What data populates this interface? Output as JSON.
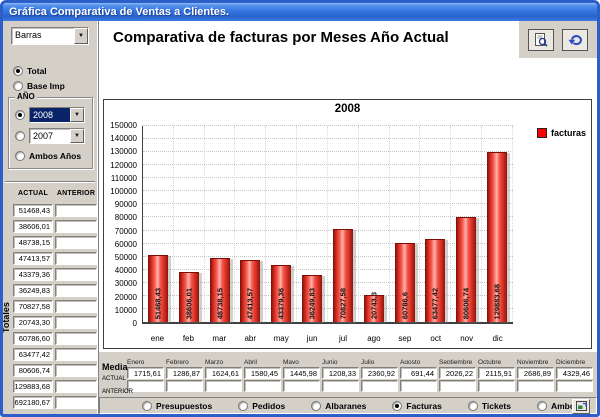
{
  "window": {
    "title": "Gráfica Comparativa de Ventas a Clientes."
  },
  "icons": {
    "combo_arrow": "chevron-down-icon",
    "toolbar_preview": "print-preview-icon",
    "toolbar_undo": "undo-arrow-icon",
    "bottom_export": "export-icon"
  },
  "sidebar": {
    "chart_type": {
      "value": "Barras"
    },
    "metric_options": [
      {
        "label": "Total",
        "selected": true
      },
      {
        "label": "Base Imp",
        "selected": false
      }
    ],
    "year_group": {
      "label": "AÑO",
      "year_primary": "2008",
      "year_secondary": "2007",
      "both_label": "Ambos Años",
      "selected": "2008"
    },
    "columns": {
      "actual": "ACTUAL",
      "anterior": "ANTERIOR"
    },
    "totales_label": "Totales",
    "rows": [
      {
        "actual": "51468,43",
        "anterior": ""
      },
      {
        "actual": "38606,01",
        "anterior": ""
      },
      {
        "actual": "48738,15",
        "anterior": ""
      },
      {
        "actual": "47413,57",
        "anterior": ""
      },
      {
        "actual": "43379,36",
        "anterior": ""
      },
      {
        "actual": "36249,83",
        "anterior": ""
      },
      {
        "actual": "70827,58",
        "anterior": ""
      },
      {
        "actual": "20743,30",
        "anterior": ""
      },
      {
        "actual": "60786,60",
        "anterior": ""
      },
      {
        "actual": "63477,42",
        "anterior": ""
      },
      {
        "actual": "80606,74",
        "anterior": ""
      },
      {
        "actual": "129883,68",
        "anterior": ""
      },
      {
        "actual": "692180,67",
        "anterior": ""
      }
    ]
  },
  "header": {
    "title": "Comparativa de facturas por Meses Año Actual"
  },
  "chart_data": {
    "type": "bar",
    "title": "2008",
    "categories": [
      "ene",
      "feb",
      "mar",
      "abr",
      "may",
      "jun",
      "jul",
      "ago",
      "sep",
      "oct",
      "nov",
      "dic"
    ],
    "values": [
      51468.43,
      38606.01,
      48738.15,
      47413.57,
      43379.36,
      36249.83,
      70827.58,
      20743.3,
      60786.6,
      63477.42,
      80606.74,
      129883.68
    ],
    "bar_labels": [
      "51468,43",
      "38606,01",
      "48738,15",
      "47413,57",
      "43379,36",
      "36249,83",
      "70827,58",
      "20743,3",
      "60786,6",
      "63477,42",
      "80606,74",
      "129883,68"
    ],
    "legend": [
      {
        "label": "facturas",
        "color": "#ff0000"
      }
    ],
    "legend_position": "right",
    "xlabel": "",
    "ylabel": "",
    "ylim": [
      0,
      150000
    ],
    "ytick_step": 10000,
    "grid": true,
    "bar_color": "#f0392b"
  },
  "media": {
    "label": "Media",
    "row_labels": {
      "actual": "ACTUAL",
      "anterior": "ANTERIOR"
    },
    "columns": [
      {
        "month": "Enero",
        "actual": "1715,61",
        "anterior": ""
      },
      {
        "month": "Febrero",
        "actual": "1286,87",
        "anterior": ""
      },
      {
        "month": "Marzo",
        "actual": "1624,61",
        "anterior": ""
      },
      {
        "month": "Abril",
        "actual": "1580,45",
        "anterior": ""
      },
      {
        "month": "Mayo",
        "actual": "1445,98",
        "anterior": ""
      },
      {
        "month": "Junio",
        "actual": "1208,33",
        "anterior": ""
      },
      {
        "month": "Julio",
        "actual": "2360,92",
        "anterior": ""
      },
      {
        "month": "Agosto",
        "actual": "691,44",
        "anterior": ""
      },
      {
        "month": "Septiembre",
        "actual": "2026,22",
        "anterior": ""
      },
      {
        "month": "Octubre",
        "actual": "2115,91",
        "anterior": ""
      },
      {
        "month": "Noviembre",
        "actual": "2686,89",
        "anterior": ""
      },
      {
        "month": "Diciembre",
        "actual": "4329,46",
        "anterior": ""
      }
    ]
  },
  "bottom_bar": {
    "options": [
      {
        "label": "Presupuestos",
        "selected": false
      },
      {
        "label": "Pedidos",
        "selected": false
      },
      {
        "label": "Albaranes",
        "selected": false
      },
      {
        "label": "Facturas",
        "selected": true
      },
      {
        "label": "Tickets",
        "selected": false
      },
      {
        "label": "Ambos",
        "selected": false
      }
    ]
  }
}
